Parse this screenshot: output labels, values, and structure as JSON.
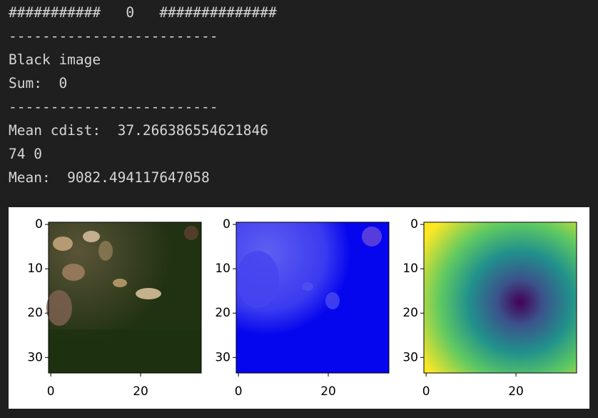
{
  "output": {
    "lines": [
      "###########   0   ##############",
      "-------------------------",
      "Black image",
      "Sum:  0",
      "-------------------------",
      "Mean cdist:  37.266386554621846",
      "74 0",
      "Mean:  9082.494117647058"
    ]
  },
  "figure": {
    "panels": [
      {
        "xlim": [
          -0.5,
          33.5
        ],
        "ylim": [
          33.5,
          -0.5
        ],
        "xticks": [
          0,
          20
        ],
        "yticks": [
          0,
          10,
          20,
          30
        ]
      },
      {
        "xlim": [
          -0.5,
          33.5
        ],
        "ylim": [
          33.5,
          -0.5
        ],
        "xticks": [
          0,
          20
        ],
        "yticks": [
          0,
          10,
          20,
          30
        ]
      },
      {
        "xlim": [
          -0.5,
          33.5
        ],
        "ylim": [
          33.5,
          -0.5
        ],
        "xticks": [
          0,
          20
        ],
        "yticks": [
          0,
          10,
          20,
          30
        ]
      }
    ]
  }
}
